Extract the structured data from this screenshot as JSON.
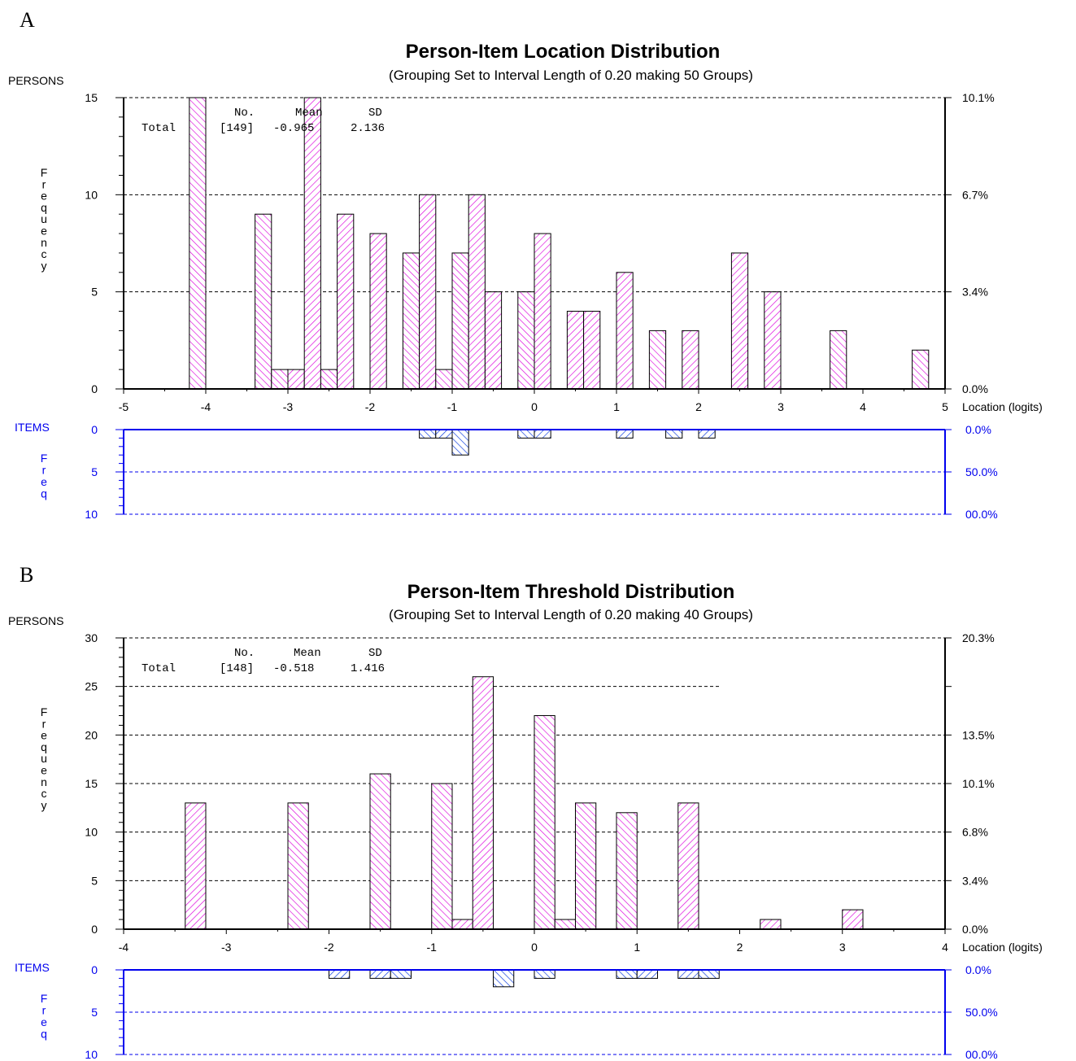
{
  "chart_data": [
    {
      "panel": "A",
      "type": "bar",
      "title": "Person-Item Location Distribution",
      "subtitle": "(Grouping Set to Interval Length of  0.20  making  50  Groups)",
      "ylabel_top": "PERSONS",
      "ylabel_vertical": "Frequency",
      "xlabel": "Location (logits)",
      "xlim": [
        -5,
        5
      ],
      "xticks": [
        "-5",
        "-4",
        "-3",
        "-2",
        "-1",
        "0",
        "1",
        "2",
        "3",
        "4",
        "5"
      ],
      "ylim": [
        0,
        15
      ],
      "yticks": [
        "0",
        "5",
        "10",
        "15"
      ],
      "right_ticks": [
        "0.0%",
        "3.4%",
        "6.7%",
        "10.1%"
      ],
      "grid": true,
      "stats": {
        "header_no": "No.",
        "header_mean": "Mean",
        "header_sd": "SD",
        "label": "Total",
        "n": "[149]",
        "mean": "-0.965",
        "sd": "2.136"
      },
      "bin_width": 0.2,
      "persons": [
        {
          "x": -4.1,
          "y": 15,
          "hatch": "back"
        },
        {
          "x": -3.3,
          "y": 9,
          "hatch": "back"
        },
        {
          "x": -3.1,
          "y": 1,
          "hatch": "back"
        },
        {
          "x": -2.9,
          "y": 1,
          "hatch": "fwd"
        },
        {
          "x": -2.7,
          "y": 15,
          "hatch": "fwd"
        },
        {
          "x": -2.5,
          "y": 1,
          "hatch": "back"
        },
        {
          "x": -2.3,
          "y": 9,
          "hatch": "fwd"
        },
        {
          "x": -1.9,
          "y": 8,
          "hatch": "fwd"
        },
        {
          "x": -1.5,
          "y": 7,
          "hatch": "back"
        },
        {
          "x": -1.3,
          "y": 10,
          "hatch": "fwd"
        },
        {
          "x": -1.1,
          "y": 1,
          "hatch": "back"
        },
        {
          "x": -0.9,
          "y": 7,
          "hatch": "back"
        },
        {
          "x": -0.7,
          "y": 10,
          "hatch": "fwd"
        },
        {
          "x": -0.5,
          "y": 5,
          "hatch": "fwd"
        },
        {
          "x": -0.1,
          "y": 5,
          "hatch": "back"
        },
        {
          "x": 0.1,
          "y": 8,
          "hatch": "fwd"
        },
        {
          "x": 0.5,
          "y": 4,
          "hatch": "fwd"
        },
        {
          "x": 0.7,
          "y": 4,
          "hatch": "fwd"
        },
        {
          "x": 1.1,
          "y": 6,
          "hatch": "fwd"
        },
        {
          "x": 1.5,
          "y": 3,
          "hatch": "back"
        },
        {
          "x": 1.9,
          "y": 3,
          "hatch": "fwd"
        },
        {
          "x": 2.5,
          "y": 7,
          "hatch": "fwd"
        },
        {
          "x": 2.9,
          "y": 5,
          "hatch": "fwd"
        },
        {
          "x": 3.7,
          "y": 3,
          "hatch": "back"
        },
        {
          "x": 4.7,
          "y": 2,
          "hatch": "back"
        }
      ],
      "items_label": "ITEMS",
      "items_ylabel_vertical": "Freq",
      "items_ylim": [
        0,
        10
      ],
      "items_yticks": [
        "0",
        "5",
        "10"
      ],
      "items_right_ticks": [
        "0.0%",
        "50.0%",
        "00.0%"
      ],
      "items": [
        {
          "x": -1.3,
          "y": 1,
          "hatch": "back"
        },
        {
          "x": -1.1,
          "y": 1,
          "hatch": "fwd"
        },
        {
          "x": -0.9,
          "y": 3,
          "hatch": "back"
        },
        {
          "x": -0.1,
          "y": 1,
          "hatch": "back"
        },
        {
          "x": 0.1,
          "y": 1,
          "hatch": "fwd"
        },
        {
          "x": 1.1,
          "y": 1,
          "hatch": "fwd"
        },
        {
          "x": 1.7,
          "y": 1,
          "hatch": "back"
        },
        {
          "x": 2.1,
          "y": 1,
          "hatch": "fwd"
        }
      ]
    },
    {
      "panel": "B",
      "type": "bar",
      "title": "Person-Item Threshold Distribution",
      "subtitle": "(Grouping Set to Interval Length of  0.20  making  40  Groups)",
      "ylabel_top": "PERSONS",
      "ylabel_vertical": "Frequency",
      "xlabel": "Location (logits)",
      "xlim": [
        -4,
        4
      ],
      "xticks": [
        "-4",
        "-3",
        "-2",
        "-1",
        "0",
        "1",
        "2",
        "3",
        "4"
      ],
      "ylim": [
        0,
        30
      ],
      "yticks": [
        "0",
        "5",
        "10",
        "15",
        "20",
        "25",
        "30"
      ],
      "right_ticks": [
        "0.0%",
        "3.4%",
        "6.8%",
        "10.1%",
        "13.5%",
        "",
        "20.3%"
      ],
      "grid": true,
      "stats": {
        "header_no": "No.",
        "header_mean": "Mean",
        "header_sd": "SD",
        "label": "Total",
        "n": "[148]",
        "mean": "-0.518",
        "sd": "1.416"
      },
      "bin_width": 0.2,
      "persons": [
        {
          "x": -3.3,
          "y": 13,
          "hatch": "fwd"
        },
        {
          "x": -2.3,
          "y": 13,
          "hatch": "back"
        },
        {
          "x": -1.5,
          "y": 16,
          "hatch": "back"
        },
        {
          "x": -0.9,
          "y": 15,
          "hatch": "back"
        },
        {
          "x": -0.7,
          "y": 1,
          "hatch": "fwd"
        },
        {
          "x": -0.5,
          "y": 26,
          "hatch": "fwd"
        },
        {
          "x": 0.1,
          "y": 22,
          "hatch": "back"
        },
        {
          "x": 0.3,
          "y": 1,
          "hatch": "back"
        },
        {
          "x": 0.5,
          "y": 13,
          "hatch": "back"
        },
        {
          "x": 0.9,
          "y": 12,
          "hatch": "back"
        },
        {
          "x": 1.5,
          "y": 13,
          "hatch": "fwd"
        },
        {
          "x": 2.3,
          "y": 1,
          "hatch": "fwd"
        },
        {
          "x": 3.1,
          "y": 2,
          "hatch": "fwd"
        }
      ],
      "items_label": "ITEMS",
      "items_ylabel_vertical": "Freq",
      "items_ylim": [
        0,
        10
      ],
      "items_yticks": [
        "0",
        "5",
        "10"
      ],
      "items_right_ticks": [
        "0.0%",
        "50.0%",
        "00.0%"
      ],
      "items": [
        {
          "x": -1.9,
          "y": 1,
          "hatch": "fwd"
        },
        {
          "x": -1.5,
          "y": 1,
          "hatch": "fwd"
        },
        {
          "x": -1.3,
          "y": 1,
          "hatch": "back"
        },
        {
          "x": -0.3,
          "y": 2,
          "hatch": "back"
        },
        {
          "x": 0.1,
          "y": 1,
          "hatch": "back"
        },
        {
          "x": 0.9,
          "y": 1,
          "hatch": "back"
        },
        {
          "x": 1.1,
          "y": 1,
          "hatch": "fwd"
        },
        {
          "x": 1.5,
          "y": 1,
          "hatch": "fwd"
        },
        {
          "x": 1.7,
          "y": 1,
          "hatch": "back"
        }
      ]
    }
  ],
  "colors": {
    "person_hatch": "#dd00dd",
    "item_hatch": "#0033dd",
    "item_axis": "#0000ee",
    "axis": "#000000"
  }
}
